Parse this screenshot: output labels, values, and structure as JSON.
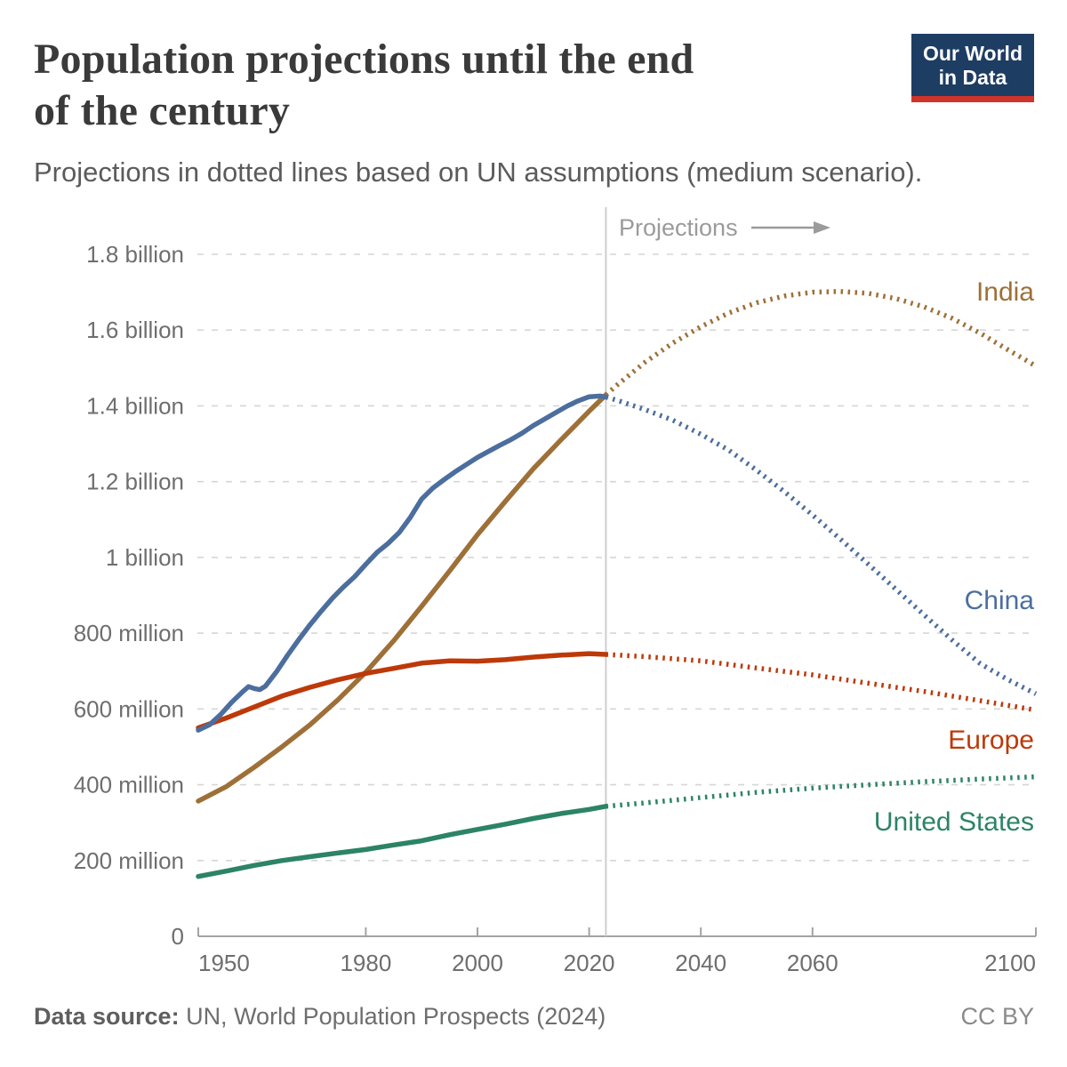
{
  "header": {
    "title_line1": "Population projections until the end",
    "title_line2": "of the century",
    "subtitle": "Projections in dotted lines based on UN assumptions (medium scenario).",
    "logo": {
      "line1": "Our World",
      "line2": "in Data",
      "bg_color": "#1d3d63",
      "accent_color": "#cf342b"
    }
  },
  "footer": {
    "source_label": "Data source:",
    "source_text": " UN, World Population Prospects (2024)",
    "license": "CC BY"
  },
  "chart_data": {
    "type": "line",
    "title": "Population projections until the end of the century",
    "subtitle": "Projections in dotted lines based on UN assumptions (medium scenario).",
    "unit": "people (millions)",
    "grid": "horizontal dashed",
    "legend_position": "line-end labels, right side",
    "projection_start_year": 2023,
    "projection_annotation": "Projections",
    "x_axis": {
      "range": [
        1950,
        2100
      ],
      "ticks": [
        1950,
        1980,
        2000,
        2020,
        2040,
        2060,
        2100
      ]
    },
    "y_axis": {
      "range": [
        0,
        1800
      ],
      "ticks": [
        {
          "value": 0,
          "label": "0"
        },
        {
          "value": 200,
          "label": "200 million"
        },
        {
          "value": 400,
          "label": "400 million"
        },
        {
          "value": 600,
          "label": "600 million"
        },
        {
          "value": 800,
          "label": "800 million"
        },
        {
          "value": 1000,
          "label": "1 billion"
        },
        {
          "value": 1200,
          "label": "1.2 billion"
        },
        {
          "value": 1400,
          "label": "1.4 billion"
        },
        {
          "value": 1600,
          "label": "1.6 billion"
        },
        {
          "value": 1800,
          "label": "1.8 billion"
        }
      ]
    },
    "series": [
      {
        "name": "India",
        "color": "#9e7038",
        "history": [
          [
            1950,
            357
          ],
          [
            1955,
            395
          ],
          [
            1960,
            446
          ],
          [
            1965,
            500
          ],
          [
            1970,
            558
          ],
          [
            1975,
            624
          ],
          [
            1980,
            697
          ],
          [
            1985,
            780
          ],
          [
            1990,
            871
          ],
          [
            1995,
            964
          ],
          [
            2000,
            1060
          ],
          [
            2005,
            1148
          ],
          [
            2010,
            1234
          ],
          [
            2015,
            1311
          ],
          [
            2020,
            1386
          ],
          [
            2023,
            1429
          ]
        ],
        "projection": [
          [
            2023,
            1429
          ],
          [
            2025,
            1455
          ],
          [
            2030,
            1515
          ],
          [
            2035,
            1566
          ],
          [
            2040,
            1609
          ],
          [
            2045,
            1645
          ],
          [
            2050,
            1672
          ],
          [
            2055,
            1690
          ],
          [
            2060,
            1700
          ],
          [
            2065,
            1702
          ],
          [
            2070,
            1697
          ],
          [
            2075,
            1683
          ],
          [
            2080,
            1661
          ],
          [
            2085,
            1631
          ],
          [
            2090,
            1592
          ],
          [
            2095,
            1548
          ],
          [
            2100,
            1505
          ]
        ]
      },
      {
        "name": "Europe",
        "color": "#bd3909",
        "history": [
          [
            1950,
            550
          ],
          [
            1955,
            576
          ],
          [
            1960,
            605
          ],
          [
            1965,
            634
          ],
          [
            1970,
            657
          ],
          [
            1975,
            677
          ],
          [
            1980,
            694
          ],
          [
            1985,
            707
          ],
          [
            1990,
            721
          ],
          [
            1995,
            727
          ],
          [
            2000,
            726
          ],
          [
            2005,
            730
          ],
          [
            2010,
            737
          ],
          [
            2015,
            742
          ],
          [
            2020,
            746
          ],
          [
            2023,
            744
          ]
        ],
        "projection": [
          [
            2023,
            744
          ],
          [
            2030,
            738
          ],
          [
            2040,
            727
          ],
          [
            2050,
            708
          ],
          [
            2060,
            690
          ],
          [
            2070,
            668
          ],
          [
            2080,
            646
          ],
          [
            2090,
            622
          ],
          [
            2100,
            597
          ]
        ]
      },
      {
        "name": "United States",
        "color": "#2c8465",
        "history": [
          [
            1950,
            158
          ],
          [
            1955,
            172
          ],
          [
            1960,
            187
          ],
          [
            1965,
            200
          ],
          [
            1970,
            210
          ],
          [
            1975,
            220
          ],
          [
            1980,
            229
          ],
          [
            1985,
            241
          ],
          [
            1990,
            252
          ],
          [
            1995,
            268
          ],
          [
            2000,
            282
          ],
          [
            2005,
            296
          ],
          [
            2010,
            311
          ],
          [
            2015,
            324
          ],
          [
            2020,
            335
          ],
          [
            2023,
            343
          ]
        ],
        "projection": [
          [
            2023,
            343
          ],
          [
            2030,
            352
          ],
          [
            2040,
            366
          ],
          [
            2050,
            380
          ],
          [
            2060,
            391
          ],
          [
            2070,
            400
          ],
          [
            2080,
            408
          ],
          [
            2090,
            415
          ],
          [
            2100,
            421
          ]
        ]
      },
      {
        "name": "China",
        "color": "#4c6e9e",
        "history": [
          [
            1950,
            544
          ],
          [
            1952,
            558
          ],
          [
            1954,
            585
          ],
          [
            1956,
            618
          ],
          [
            1958,
            646
          ],
          [
            1959,
            659
          ],
          [
            1960,
            654
          ],
          [
            1961,
            651
          ],
          [
            1962,
            660
          ],
          [
            1964,
            698
          ],
          [
            1966,
            742
          ],
          [
            1968,
            783
          ],
          [
            1970,
            822
          ],
          [
            1972,
            858
          ],
          [
            1974,
            892
          ],
          [
            1976,
            922
          ],
          [
            1978,
            949
          ],
          [
            1980,
            982
          ],
          [
            1982,
            1013
          ],
          [
            1984,
            1037
          ],
          [
            1986,
            1066
          ],
          [
            1988,
            1106
          ],
          [
            1990,
            1154
          ],
          [
            1992,
            1183
          ],
          [
            1994,
            1205
          ],
          [
            1996,
            1226
          ],
          [
            1998,
            1245
          ],
          [
            2000,
            1264
          ],
          [
            2002,
            1280
          ],
          [
            2004,
            1296
          ],
          [
            2006,
            1311
          ],
          [
            2008,
            1328
          ],
          [
            2010,
            1348
          ],
          [
            2012,
            1365
          ],
          [
            2014,
            1382
          ],
          [
            2016,
            1399
          ],
          [
            2018,
            1413
          ],
          [
            2020,
            1424
          ],
          [
            2022,
            1426
          ],
          [
            2023,
            1423
          ]
        ],
        "projection": [
          [
            2023,
            1423
          ],
          [
            2025,
            1415
          ],
          [
            2030,
            1390
          ],
          [
            2035,
            1362
          ],
          [
            2040,
            1325
          ],
          [
            2045,
            1283
          ],
          [
            2050,
            1230
          ],
          [
            2055,
            1173
          ],
          [
            2060,
            1112
          ],
          [
            2065,
            1048
          ],
          [
            2070,
            982
          ],
          [
            2075,
            915
          ],
          [
            2080,
            848
          ],
          [
            2085,
            782
          ],
          [
            2090,
            720
          ],
          [
            2095,
            677
          ],
          [
            2100,
            640
          ]
        ]
      }
    ]
  }
}
